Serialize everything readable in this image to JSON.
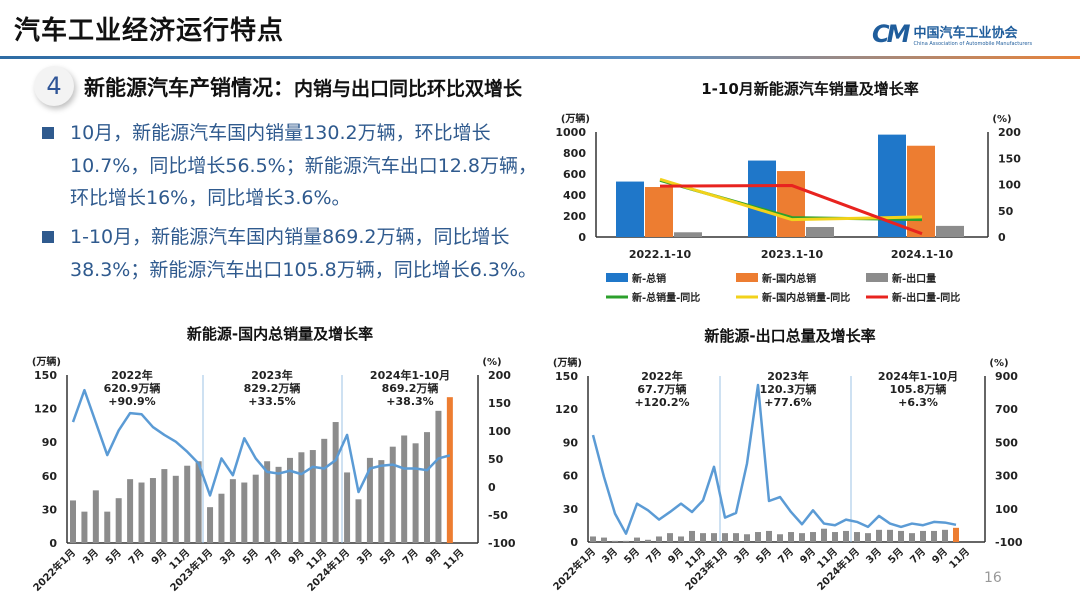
{
  "header": {
    "title": "汽车工业经济运行特点",
    "logo_mark": "CM",
    "logo_cn": "中国汽车工业协会",
    "logo_en": "China Association of Automobile Manufacturers"
  },
  "section": {
    "number": "4",
    "title": "新能源汽车产销情况：",
    "title_sub": "内销与出口同比环比双增长"
  },
  "bullets": [
    "10月，新能源汽车国内销量130.2万辆，环比增长10.7%，同比增长56.5%；新能源汽车出口12.8万辆，环比增长16%，同比增长3.6%。",
    "1-10月，新能源汽车国内销量869.2万辆，同比增长38.3%；新能源汽车出口105.8万辆，同比增长6.3%。"
  ],
  "page_number": "16",
  "colors": {
    "blue": "#1f77c9",
    "orange": "#ed7d31",
    "grey": "#8c8c8c",
    "green": "#2ca02c",
    "yellow": "#f2d21b",
    "red": "#e8231f",
    "line": "#5b9bd5",
    "accent": "#2f5a8e"
  },
  "chart_data": [
    {
      "type": "bar+line",
      "title": "1-10月新能源汽车销量及增长率",
      "ylabel": "(万辆)",
      "y2label": "(%)",
      "ylim": [
        0,
        1000
      ],
      "y2lim": [
        0,
        200
      ],
      "yticks": [
        0,
        200,
        400,
        600,
        800,
        1000
      ],
      "y2ticks": [
        0,
        50,
        100,
        150,
        200
      ],
      "categories": [
        "2022.1-10",
        "2023.1-10",
        "2024.1-10"
      ],
      "bar_series": [
        {
          "name": "新-总销",
          "values": [
            528,
            728,
            975
          ],
          "color": "#1f77c9"
        },
        {
          "name": "新-国内总销",
          "values": [
            476,
            628,
            869.2
          ],
          "color": "#ed7d31"
        },
        {
          "name": "新-出口量",
          "values": [
            45,
            95,
            105.8
          ],
          "color": "#8c8c8c"
        }
      ],
      "line_series": [
        {
          "name": "新-总销量-同比",
          "values": [
            108,
            37,
            33
          ],
          "color": "#2ca02c"
        },
        {
          "name": "新-国内总销量-同比",
          "values": [
            110,
            33,
            38.3
          ],
          "color": "#f2d21b"
        },
        {
          "name": "新-出口量-同比",
          "values": [
            97,
            98,
            6.3
          ],
          "color": "#e8231f"
        }
      ],
      "legend": "bottom"
    },
    {
      "type": "bar+line",
      "title": "新能源-国内总销量及增长率",
      "ylabel": "(万辆)",
      "y2label": "(%)",
      "ylim": [
        0,
        150
      ],
      "y2lim": [
        -100,
        200
      ],
      "yticks": [
        0,
        30,
        60,
        90,
        120,
        150
      ],
      "y2ticks": [
        -100,
        -50,
        0,
        50,
        100,
        150,
        200
      ],
      "xtick_labels": [
        "2022年1月",
        "3月",
        "5月",
        "7月",
        "9月",
        "11月",
        "2023年1月",
        "3月",
        "5月",
        "7月",
        "9月",
        "11月",
        "2024年1月",
        "3月",
        "5月",
        "7月",
        "9月",
        "11月"
      ],
      "bars": [
        38,
        28,
        47,
        28,
        40,
        57,
        54,
        58,
        66,
        60,
        69,
        73,
        32,
        44,
        57,
        54,
        61,
        73,
        68,
        76,
        81,
        83,
        93,
        108,
        63,
        39,
        76,
        74,
        86,
        96,
        89,
        99,
        118,
        130.2
      ],
      "highlight_last": true,
      "growth": [
        116,
        173,
        115,
        57,
        101,
        132,
        130,
        107,
        93,
        81,
        63,
        42,
        -15,
        51,
        21,
        87,
        51,
        27,
        24,
        29,
        23,
        36,
        33,
        48,
        93,
        -9,
        33,
        38,
        40,
        33,
        33,
        30,
        51,
        56.5
      ],
      "annotations": [
        {
          "year": "2022年",
          "volume": "620.9万辆",
          "growth": "+90.9%"
        },
        {
          "year": "2023年",
          "volume": "829.2万辆",
          "growth": "+33.5%"
        },
        {
          "year": "2024年1-10月",
          "volume": "869.2万辆",
          "growth": "+38.3%"
        }
      ]
    },
    {
      "type": "bar+line",
      "title": "新能源-出口总量及增长率",
      "ylabel": "(万辆)",
      "y2label": "(%)",
      "ylim": [
        0,
        150
      ],
      "y2lim": [
        -100,
        900
      ],
      "yticks": [
        0,
        30,
        60,
        90,
        120,
        150
      ],
      "y2ticks": [
        -100,
        100,
        300,
        500,
        700,
        900
      ],
      "xtick_labels": [
        "2022年1月",
        "3月",
        "5月",
        "7月",
        "9月",
        "11月",
        "2023年1月",
        "3月",
        "5月",
        "7月",
        "9月",
        "11月",
        "2024年1月",
        "3月",
        "5月",
        "7月",
        "9月",
        "11月"
      ],
      "bars": [
        5,
        4,
        1,
        1,
        4,
        2,
        5,
        8,
        5,
        10,
        8,
        8,
        8,
        8,
        7,
        9,
        10,
        7,
        9,
        8,
        9,
        12,
        9,
        10,
        9,
        8,
        11,
        11,
        10,
        8,
        10,
        10,
        11,
        12.8
      ],
      "highlight_last": true,
      "growth": [
        544,
        292,
        71,
        -50,
        131,
        91,
        35,
        81,
        131,
        81,
        151,
        353,
        47,
        75,
        373,
        846,
        147,
        171,
        81,
        7,
        91,
        11,
        1,
        35,
        21,
        -9,
        57,
        11,
        -9,
        11,
        1,
        21,
        17,
        3.6
      ],
      "annotations": [
        {
          "year": "2022年",
          "volume": "67.7万辆",
          "growth": "+120.2%"
        },
        {
          "year": "2023年",
          "volume": "120.3万辆",
          "growth": "+77.6%"
        },
        {
          "year": "2024年1-10月",
          "volume": "105.8万辆",
          "growth": "+6.3%"
        }
      ]
    }
  ]
}
